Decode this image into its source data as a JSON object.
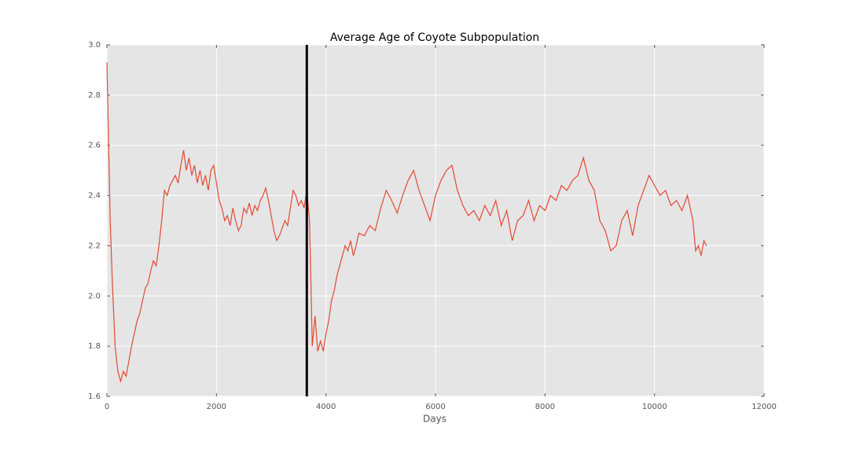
{
  "chart_data": {
    "type": "line",
    "title": "Average Age of Coyote Subpopulation",
    "x_label": "Days",
    "color": "#e24a33",
    "grid": true,
    "vline": 3650,
    "vline_color": "#000000",
    "xlim": [
      0,
      12000
    ],
    "xticks": [
      0,
      2000,
      4000,
      6000,
      8000,
      10000,
      12000
    ],
    "ylim": [
      1.6,
      3.0
    ],
    "yticks": [
      1.6,
      1.8,
      {
        "value": 2.0,
        "label": "2.0"
      },
      2.2,
      2.4,
      2.6,
      2.8,
      {
        "value": 3.0,
        "label": "3.0"
      }
    ],
    "x": [
      0,
      30,
      60,
      100,
      150,
      200,
      250,
      300,
      350,
      400,
      450,
      500,
      550,
      600,
      650,
      700,
      750,
      800,
      850,
      900,
      950,
      1000,
      1050,
      1100,
      1150,
      1200,
      1250,
      1300,
      1350,
      1400,
      1450,
      1500,
      1550,
      1600,
      1650,
      1700,
      1750,
      1800,
      1850,
      1900,
      1950,
      2000,
      2050,
      2100,
      2150,
      2200,
      2250,
      2300,
      2350,
      2400,
      2450,
      2500,
      2550,
      2600,
      2650,
      2700,
      2750,
      2800,
      2850,
      2900,
      2950,
      3000,
      3050,
      3100,
      3150,
      3200,
      3250,
      3300,
      3350,
      3400,
      3450,
      3500,
      3550,
      3600,
      3650,
      3700,
      3750,
      3800,
      3850,
      3900,
      3950,
      4000,
      4050,
      4100,
      4150,
      4200,
      4250,
      4300,
      4350,
      4400,
      4450,
      4500,
      4550,
      4600,
      4700,
      4800,
      4900,
      5000,
      5100,
      5200,
      5300,
      5400,
      5500,
      5600,
      5700,
      5800,
      5900,
      6000,
      6100,
      6200,
      6300,
      6400,
      6500,
      6600,
      6700,
      6800,
      6900,
      7000,
      7100,
      7200,
      7300,
      7400,
      7500,
      7600,
      7700,
      7800,
      7900,
      8000,
      8100,
      8200,
      8300,
      8400,
      8500,
      8600,
      8700,
      8800,
      8900,
      9000,
      9100,
      9200,
      9300,
      9400,
      9500,
      9600,
      9700,
      9800,
      9900,
      10000,
      10100,
      10200,
      10300,
      10400,
      10500,
      10600,
      10700,
      10750,
      10800,
      10850,
      10900,
      10950
    ],
    "values": [
      2.93,
      2.62,
      2.3,
      2.05,
      1.8,
      1.7,
      1.66,
      1.7,
      1.68,
      1.74,
      1.8,
      1.85,
      1.9,
      1.93,
      1.98,
      2.03,
      2.05,
      2.1,
      2.14,
      2.12,
      2.2,
      2.3,
      2.42,
      2.4,
      2.44,
      2.46,
      2.48,
      2.45,
      2.52,
      2.58,
      2.5,
      2.55,
      2.48,
      2.52,
      2.45,
      2.5,
      2.44,
      2.48,
      2.42,
      2.5,
      2.52,
      2.45,
      2.38,
      2.35,
      2.3,
      2.32,
      2.28,
      2.35,
      2.3,
      2.26,
      2.28,
      2.35,
      2.33,
      2.37,
      2.32,
      2.36,
      2.34,
      2.38,
      2.4,
      2.43,
      2.38,
      2.32,
      2.26,
      2.22,
      2.24,
      2.27,
      2.3,
      2.28,
      2.35,
      2.42,
      2.4,
      2.36,
      2.38,
      2.35,
      2.42,
      2.3,
      1.8,
      1.92,
      1.78,
      1.82,
      1.78,
      1.85,
      1.9,
      1.98,
      2.02,
      2.08,
      2.12,
      2.16,
      2.2,
      2.18,
      2.22,
      2.16,
      2.2,
      2.25,
      2.24,
      2.28,
      2.26,
      2.35,
      2.42,
      2.38,
      2.33,
      2.4,
      2.46,
      2.5,
      2.42,
      2.36,
      2.3,
      2.4,
      2.46,
      2.5,
      2.52,
      2.42,
      2.36,
      2.32,
      2.34,
      2.3,
      2.36,
      2.32,
      2.38,
      2.28,
      2.34,
      2.22,
      2.3,
      2.32,
      2.38,
      2.3,
      2.36,
      2.34,
      2.4,
      2.38,
      2.44,
      2.42,
      2.46,
      2.48,
      2.55,
      2.46,
      2.42,
      2.3,
      2.26,
      2.18,
      2.2,
      2.3,
      2.34,
      2.24,
      2.36,
      2.42,
      2.48,
      2.44,
      2.4,
      2.42,
      2.36,
      2.38,
      2.34,
      2.4,
      2.3,
      2.18,
      2.2,
      2.16,
      2.22,
      2.2
    ]
  }
}
